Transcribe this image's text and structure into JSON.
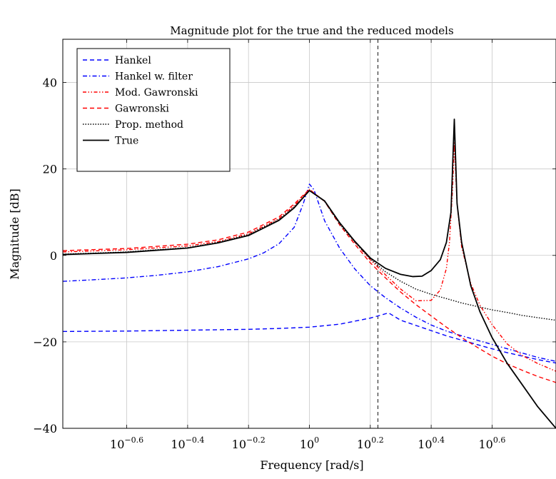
{
  "chart_data": {
    "type": "line",
    "title": "Magnitude plot for the true and the reduced models",
    "xlabel": "Frequency [rad/s]",
    "ylabel": "Magnitude [dB]",
    "xscale": "log10",
    "xlim_log10": [
      -0.81,
      0.81
    ],
    "ylim": [
      -40,
      50
    ],
    "x_ticks": [
      {
        "base": "10",
        "exp": "−0.6",
        "value": -0.6
      },
      {
        "base": "10",
        "exp": "−0.4",
        "value": -0.4
      },
      {
        "base": "10",
        "exp": "−0.2",
        "value": -0.2
      },
      {
        "base": "10",
        "exp": "0",
        "value": 0
      },
      {
        "base": "10",
        "exp": "0.2",
        "value": 0.2
      },
      {
        "base": "10",
        "exp": "0.4",
        "value": 0.4
      },
      {
        "base": "10",
        "exp": "0.6",
        "value": 0.6
      }
    ],
    "y_ticks": [
      {
        "label": "40",
        "value": 40
      },
      {
        "label": "20",
        "value": 20
      },
      {
        "label": "0",
        "value": 0
      },
      {
        "label": "−20",
        "value": -20
      },
      {
        "label": "−40",
        "value": -40
      }
    ],
    "grid": true,
    "legend_position": "top-left",
    "vertical_line_log10": 0.225,
    "series": [
      {
        "name": "Hankel",
        "color": "#0000ff",
        "dash": "dashed",
        "points": [
          [
            -0.81,
            -17.6
          ],
          [
            -0.6,
            -17.5
          ],
          [
            -0.4,
            -17.3
          ],
          [
            -0.2,
            -17.1
          ],
          [
            -0.1,
            -16.9
          ],
          [
            0,
            -16.6
          ],
          [
            0.1,
            -15.9
          ],
          [
            0.2,
            -14.5
          ],
          [
            0.26,
            -13.3
          ],
          [
            0.3,
            -15
          ],
          [
            0.35,
            -16.2
          ],
          [
            0.4,
            -17.4
          ],
          [
            0.45,
            -18.6
          ],
          [
            0.5,
            -19.6
          ],
          [
            0.55,
            -20.6
          ],
          [
            0.6,
            -21.6
          ],
          [
            0.65,
            -22.5
          ],
          [
            0.7,
            -23.3
          ],
          [
            0.75,
            -24.1
          ],
          [
            0.81,
            -24.9
          ]
        ]
      },
      {
        "name": "Hankel w. filter",
        "color": "#0000ff",
        "dash": "dashdot",
        "points": [
          [
            -0.81,
            -6
          ],
          [
            -0.7,
            -5.6
          ],
          [
            -0.6,
            -5.2
          ],
          [
            -0.5,
            -4.6
          ],
          [
            -0.4,
            -3.8
          ],
          [
            -0.3,
            -2.6
          ],
          [
            -0.2,
            -0.8
          ],
          [
            -0.15,
            0.6
          ],
          [
            -0.1,
            2.7
          ],
          [
            -0.05,
            6.5
          ],
          [
            -0.02,
            12
          ],
          [
            0.0,
            16.5
          ],
          [
            0.015,
            15.2
          ],
          [
            0.05,
            8
          ],
          [
            0.1,
            1.6
          ],
          [
            0.15,
            -3.2
          ],
          [
            0.2,
            -7
          ],
          [
            0.25,
            -9.8
          ],
          [
            0.3,
            -12.2
          ],
          [
            0.35,
            -14.3
          ],
          [
            0.4,
            -16.1
          ],
          [
            0.45,
            -17.5
          ],
          [
            0.5,
            -18.6
          ],
          [
            0.55,
            -19.6
          ],
          [
            0.6,
            -20.6
          ],
          [
            0.65,
            -21.6
          ],
          [
            0.7,
            -22.6
          ],
          [
            0.75,
            -23.6
          ],
          [
            0.81,
            -24.5
          ]
        ]
      },
      {
        "name": "Mod. Gawronski",
        "color": "#ff0000",
        "dash": "dashdotdot",
        "points": [
          [
            -0.81,
            0.8
          ],
          [
            -0.6,
            1.3
          ],
          [
            -0.4,
            2.2
          ],
          [
            -0.3,
            3.2
          ],
          [
            -0.2,
            5
          ],
          [
            -0.1,
            8.5
          ],
          [
            -0.05,
            11.5
          ],
          [
            0,
            15.2
          ],
          [
            0.05,
            12.5
          ],
          [
            0.1,
            7.5
          ],
          [
            0.15,
            3
          ],
          [
            0.2,
            -1
          ],
          [
            0.25,
            -4.5
          ],
          [
            0.3,
            -7.8
          ],
          [
            0.35,
            -10.5
          ],
          [
            0.4,
            -10.4
          ],
          [
            0.43,
            -8
          ],
          [
            0.45,
            -3
          ],
          [
            0.46,
            3
          ],
          [
            0.47,
            15
          ],
          [
            0.476,
            26
          ],
          [
            0.485,
            12
          ],
          [
            0.5,
            2
          ],
          [
            0.53,
            -6.5
          ],
          [
            0.56,
            -11.5
          ],
          [
            0.6,
            -16
          ],
          [
            0.65,
            -20.5
          ],
          [
            0.7,
            -23.2
          ],
          [
            0.75,
            -25
          ],
          [
            0.81,
            -26.8
          ]
        ]
      },
      {
        "name": "Gawronski",
        "color": "#ff0000",
        "dash": "dashed",
        "points": [
          [
            -0.81,
            1.1
          ],
          [
            -0.6,
            1.6
          ],
          [
            -0.4,
            2.6
          ],
          [
            -0.3,
            3.6
          ],
          [
            -0.2,
            5.4
          ],
          [
            -0.1,
            8.9
          ],
          [
            -0.05,
            11.9
          ],
          [
            0,
            15.3
          ],
          [
            0.05,
            12.5
          ],
          [
            0.1,
            7
          ],
          [
            0.15,
            2.5
          ],
          [
            0.2,
            -1.7
          ],
          [
            0.25,
            -5.2
          ],
          [
            0.3,
            -8.5
          ],
          [
            0.35,
            -11.4
          ],
          [
            0.4,
            -14
          ],
          [
            0.45,
            -16.6
          ],
          [
            0.5,
            -19
          ],
          [
            0.55,
            -21.2
          ],
          [
            0.6,
            -23.3
          ],
          [
            0.65,
            -25.1
          ],
          [
            0.7,
            -26.6
          ],
          [
            0.75,
            -28
          ],
          [
            0.81,
            -29.4
          ]
        ]
      },
      {
        "name": "Prop. method",
        "color": "#000000",
        "dash": "dotted",
        "points": [
          [
            -0.81,
            0.3
          ],
          [
            -0.6,
            0.8
          ],
          [
            -0.4,
            1.8
          ],
          [
            -0.3,
            3
          ],
          [
            -0.2,
            4.8
          ],
          [
            -0.1,
            8.3
          ],
          [
            -0.05,
            11.2
          ],
          [
            0,
            15
          ],
          [
            0.05,
            12.5
          ],
          [
            0.1,
            7.2
          ],
          [
            0.15,
            3
          ],
          [
            0.2,
            -0.8
          ],
          [
            0.25,
            -3.8
          ],
          [
            0.3,
            -6
          ],
          [
            0.35,
            -7.8
          ],
          [
            0.4,
            -9
          ],
          [
            0.45,
            -10
          ],
          [
            0.5,
            -11
          ],
          [
            0.55,
            -11.8
          ],
          [
            0.6,
            -12.6
          ],
          [
            0.65,
            -13.2
          ],
          [
            0.7,
            -13.9
          ],
          [
            0.75,
            -14.4
          ],
          [
            0.81,
            -15
          ]
        ]
      },
      {
        "name": "True",
        "color": "#000000",
        "dash": "solid",
        "points": [
          [
            -0.81,
            0.2
          ],
          [
            -0.6,
            0.7
          ],
          [
            -0.4,
            1.7
          ],
          [
            -0.3,
            2.9
          ],
          [
            -0.2,
            4.6
          ],
          [
            -0.1,
            8.1
          ],
          [
            -0.05,
            11
          ],
          [
            0,
            15
          ],
          [
            0.05,
            12.6
          ],
          [
            0.1,
            7.5
          ],
          [
            0.15,
            3.2
          ],
          [
            0.2,
            -0.6
          ],
          [
            0.25,
            -3
          ],
          [
            0.3,
            -4.4
          ],
          [
            0.34,
            -4.9
          ],
          [
            0.37,
            -4.8
          ],
          [
            0.4,
            -3.5
          ],
          [
            0.43,
            -1
          ],
          [
            0.45,
            3
          ],
          [
            0.465,
            10
          ],
          [
            0.476,
            31.5
          ],
          [
            0.485,
            12
          ],
          [
            0.5,
            3
          ],
          [
            0.53,
            -7
          ],
          [
            0.56,
            -13
          ],
          [
            0.6,
            -19
          ],
          [
            0.65,
            -25
          ],
          [
            0.7,
            -30
          ],
          [
            0.75,
            -35
          ],
          [
            0.81,
            -40
          ]
        ]
      }
    ]
  }
}
